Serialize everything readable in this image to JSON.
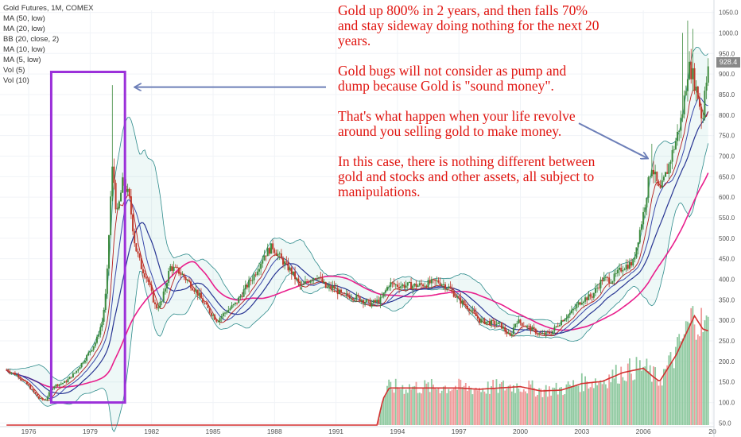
{
  "legend": {
    "title": "Gold Futures, 1M, COMEX",
    "indicators": [
      "MA (50, low)",
      "MA (20, low)",
      "BB (20, close, 2)",
      "MA (10, low)",
      "MA (5, low)",
      "Vol (5)",
      "Vol (10)"
    ]
  },
  "annotation": {
    "p1": "Gold up 800% in 2 years, and then falls 70% and stay sideway doing nothing for the next 20 years.",
    "p2": "Gold bugs will not consider as pump and dump because Gold is \"sound money\".",
    "p3": "That's what happen when your life revolve around you selling gold to make money.",
    "p4": "In this case, there is nothing different between gold and stocks and other assets, all subject to manipulations."
  },
  "last_price": "928.4",
  "colors": {
    "up": "#26a69a",
    "down": "#ef5350",
    "candle_up": "#3d8a3d",
    "candle_down": "#c0392b",
    "annotation": "#e0140f",
    "box": "#9b30d9",
    "arrow": "#6d7fb8",
    "ma50": "#e91e8c",
    "ma20": "#283593",
    "ma10": "#3949ab",
    "ma5": "#b71c1c",
    "bb": "#2e8b8b",
    "vol_line": "#d32f2f",
    "vol_up": "#8fc9a0",
    "vol_down": "#ef9a9a"
  },
  "chart_data": {
    "type": "candlestick",
    "title": "Gold Futures, 1M, COMEX",
    "x_ticks": [
      "1976",
      "1979",
      "1982",
      "1985",
      "1988",
      "1991",
      "1994",
      "1997",
      "2000",
      "2003",
      "2006",
      "20"
    ],
    "y_ticks": [
      "1050.0",
      "1000.0",
      "950.0",
      "900.0",
      "850.0",
      "800.0",
      "750.0",
      "700.0",
      "650.0",
      "600.0",
      "550.0",
      "500.0",
      "450.0",
      "400.0",
      "350.0",
      "300.0",
      "250.0",
      "200.0",
      "150.0",
      "100.0",
      "50.0"
    ],
    "y_range": [
      45,
      1055
    ],
    "price_anchors": [
      [
        1974.9,
        180
      ],
      [
        1975.5,
        165
      ],
      [
        1976.0,
        140
      ],
      [
        1976.5,
        110
      ],
      [
        1976.8,
        105
      ],
      [
        1977.2,
        140
      ],
      [
        1977.8,
        150
      ],
      [
        1978.3,
        175
      ],
      [
        1978.8,
        210
      ],
      [
        1979.3,
        250
      ],
      [
        1979.6,
        300
      ],
      [
        1979.8,
        380
      ],
      [
        1980.0,
        600
      ],
      [
        1980.1,
        680
      ],
      [
        1980.3,
        550
      ],
      [
        1980.6,
        640
      ],
      [
        1980.9,
        600
      ],
      [
        1981.2,
        480
      ],
      [
        1981.5,
        430
      ],
      [
        1981.8,
        400
      ],
      [
        1982.2,
        330
      ],
      [
        1982.5,
        345
      ],
      [
        1982.9,
        430
      ],
      [
        1983.3,
        420
      ],
      [
        1983.7,
        400
      ],
      [
        1984.2,
        370
      ],
      [
        1984.7,
        330
      ],
      [
        1985.2,
        300
      ],
      [
        1985.6,
        320
      ],
      [
        1986.1,
        340
      ],
      [
        1986.6,
        380
      ],
      [
        1987.0,
        410
      ],
      [
        1987.5,
        460
      ],
      [
        1987.9,
        480
      ],
      [
        1988.3,
        450
      ],
      [
        1988.8,
        420
      ],
      [
        1989.3,
        380
      ],
      [
        1989.7,
        400
      ],
      [
        1990.1,
        410
      ],
      [
        1990.5,
        380
      ],
      [
        1990.9,
        380
      ],
      [
        1991.3,
        360
      ],
      [
        1991.8,
        360
      ],
      [
        1992.3,
        350
      ],
      [
        1992.7,
        340
      ],
      [
        1993.2,
        350
      ],
      [
        1993.6,
        390
      ],
      [
        1994.0,
        385
      ],
      [
        1995.0,
        385
      ],
      [
        1996.0,
        395
      ],
      [
        1996.5,
        380
      ],
      [
        1997.0,
        350
      ],
      [
        1997.5,
        330
      ],
      [
        1998.0,
        300
      ],
      [
        1999.0,
        290
      ],
      [
        1999.5,
        260
      ],
      [
        1999.8,
        300
      ],
      [
        2000.5,
        280
      ],
      [
        2001.0,
        265
      ],
      [
        2001.5,
        270
      ],
      [
        2002.0,
        300
      ],
      [
        2002.5,
        320
      ],
      [
        2003.0,
        350
      ],
      [
        2003.5,
        360
      ],
      [
        2004.0,
        400
      ],
      [
        2004.5,
        400
      ],
      [
        2005.0,
        430
      ],
      [
        2005.5,
        440
      ],
      [
        2006.0,
        560
      ],
      [
        2006.4,
        680
      ],
      [
        2006.8,
        610
      ],
      [
        2007.2,
        670
      ],
      [
        2007.6,
        740
      ],
      [
        2007.9,
        800
      ],
      [
        2008.2,
        920
      ],
      [
        2008.4,
        900
      ],
      [
        2008.7,
        840
      ],
      [
        2008.9,
        780
      ],
      [
        2009.0,
        870
      ],
      [
        2009.2,
        928
      ]
    ],
    "volume_anchors": [
      [
        1974.9,
        0
      ],
      [
        1993.0,
        0
      ],
      [
        1993.3,
        60
      ],
      [
        1993.6,
        85
      ],
      [
        1995.0,
        85
      ],
      [
        1997.0,
        85
      ],
      [
        1998.0,
        82
      ],
      [
        1999.0,
        85
      ],
      [
        2000.0,
        88
      ],
      [
        2001.0,
        78
      ],
      [
        2002.0,
        80
      ],
      [
        2003.0,
        95
      ],
      [
        2004.0,
        100
      ],
      [
        2005.0,
        120
      ],
      [
        2006.0,
        130
      ],
      [
        2006.5,
        110
      ],
      [
        2006.8,
        100
      ],
      [
        2007.2,
        130
      ],
      [
        2007.6,
        160
      ],
      [
        2008.0,
        200
      ],
      [
        2008.5,
        250
      ],
      [
        2008.9,
        220
      ],
      [
        2009.2,
        215
      ]
    ]
  }
}
